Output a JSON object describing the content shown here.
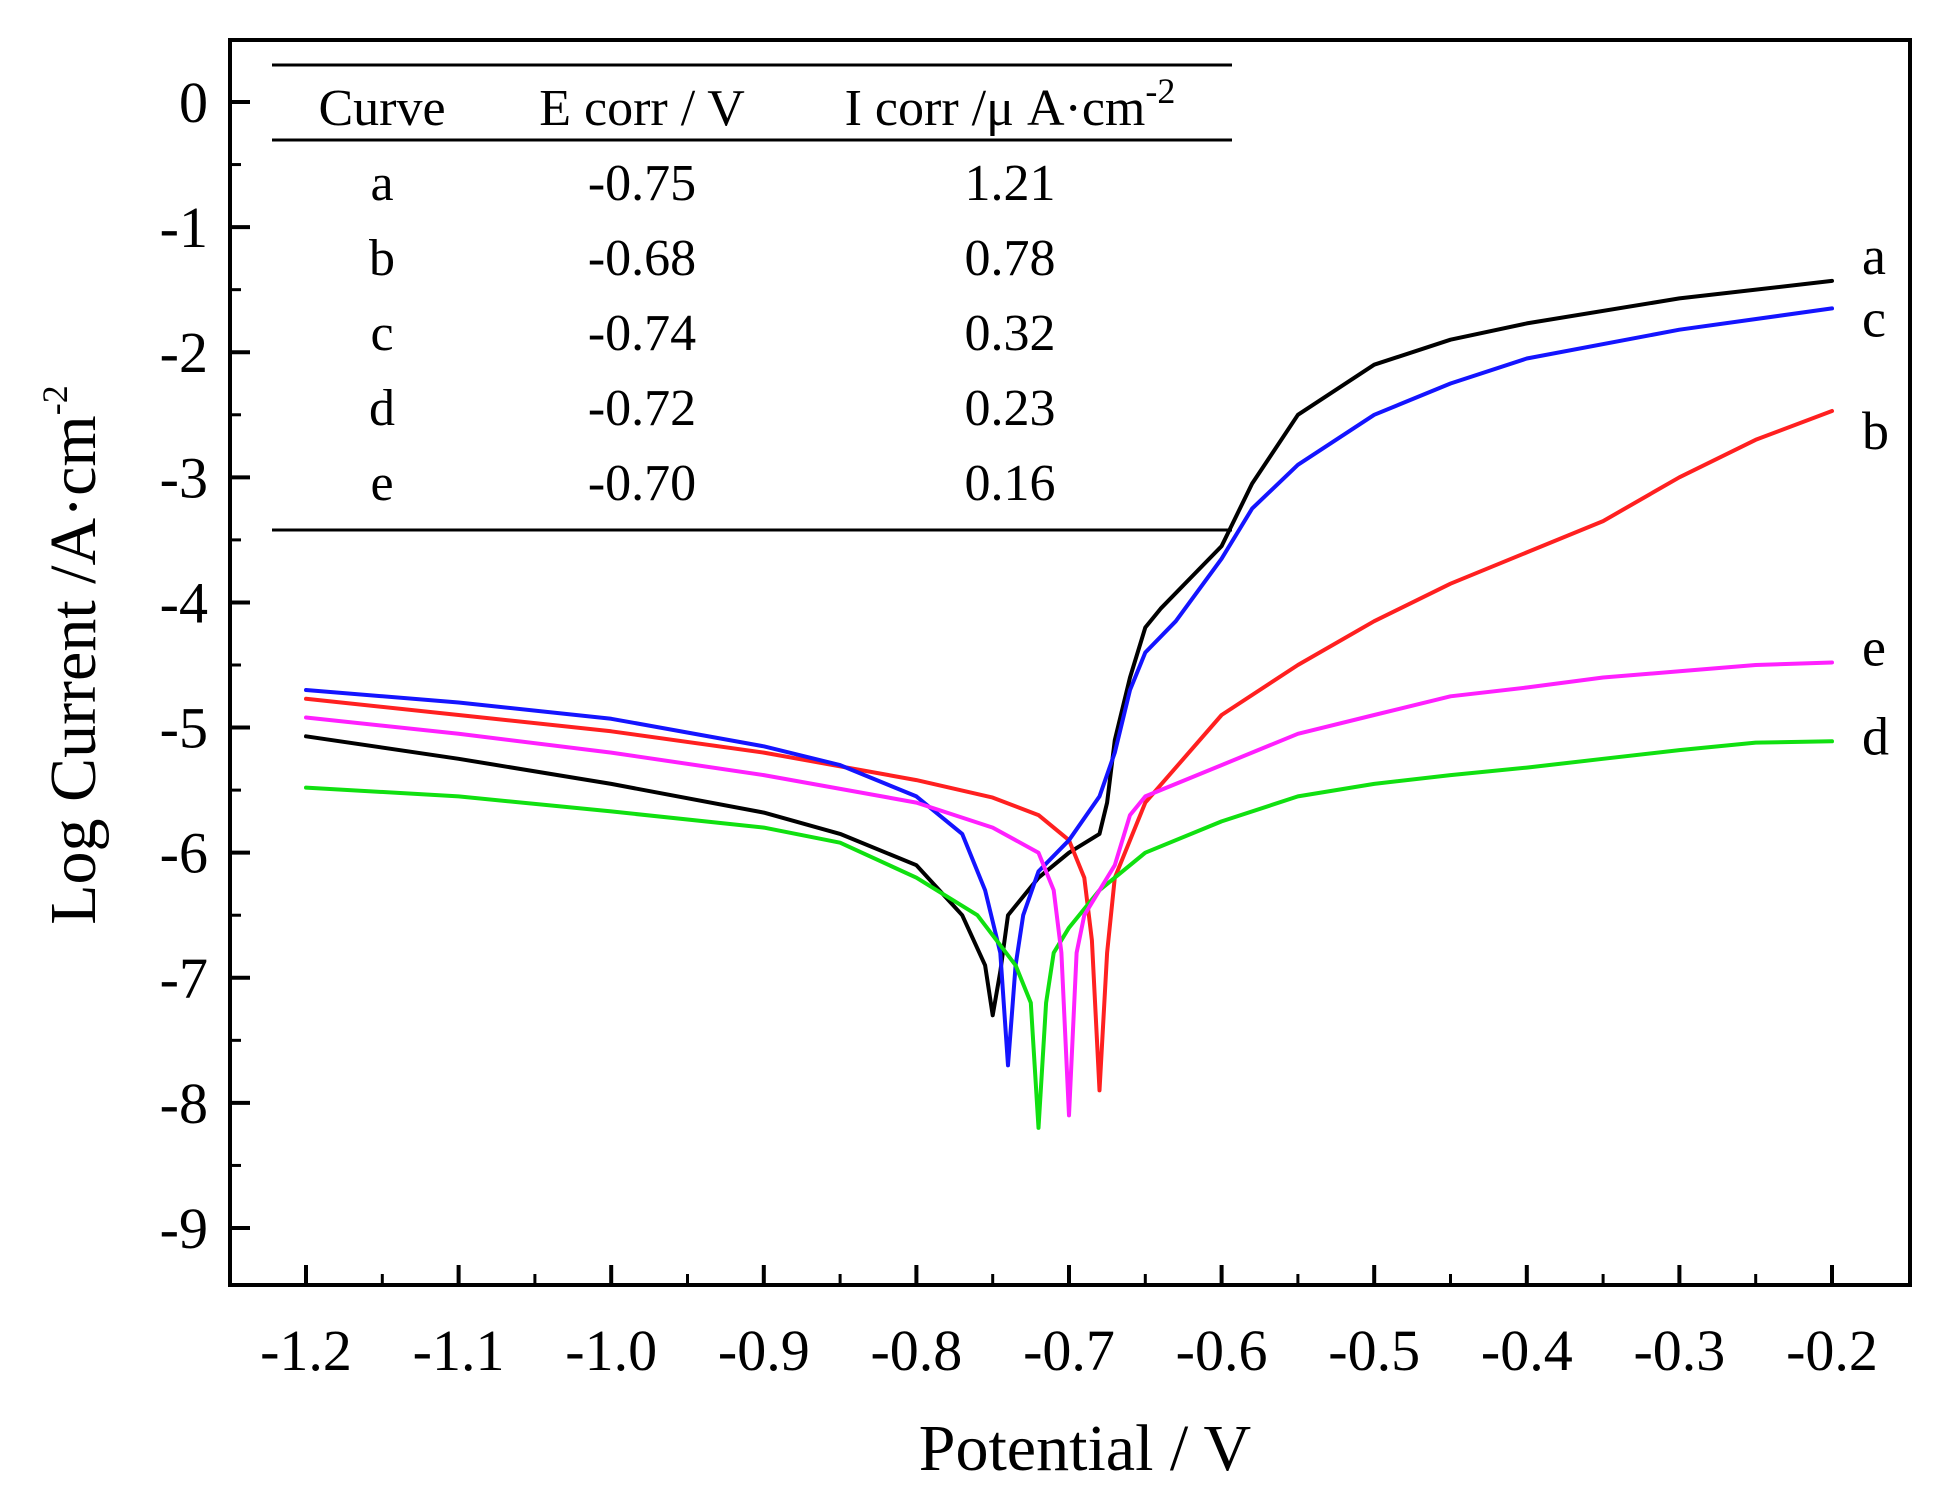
{
  "chart_data": {
    "type": "line",
    "xlabel": "Potential / V",
    "ylabel_main": "Log Current /A·cm",
    "ylabel_sup": "-2",
    "xlim": [
      -1.25,
      -0.15
    ],
    "ylim": [
      -9.5,
      0.5
    ],
    "x_ticks": [
      -1.2,
      -1.1,
      -1.0,
      -0.9,
      -0.8,
      -0.7,
      -0.6,
      -0.5,
      -0.4,
      -0.3,
      -0.2
    ],
    "x_tick_labels": [
      "-1.2",
      "-1.1",
      "-1.0",
      "-0.9",
      "-0.8",
      "-0.7",
      "-0.6",
      "-0.5",
      "-0.4",
      "-0.3",
      "-0.2"
    ],
    "y_ticks": [
      0,
      -1,
      -2,
      -3,
      -4,
      -5,
      -6,
      -7,
      -8,
      -9
    ],
    "y_tick_labels": [
      "0",
      "-1",
      "-2",
      "-3",
      "-4",
      "-5",
      "-6",
      "-7",
      "-8",
      "-9"
    ],
    "inset_table": {
      "headers": [
        "Curve",
        "E corr / V",
        "I corr /μ A·cm"
      ],
      "header_sup": "-2",
      "rows": [
        [
          "a",
          "-0.75",
          "1.21"
        ],
        [
          "b",
          "-0.68",
          "0.78"
        ],
        [
          "c",
          "-0.74",
          "0.32"
        ],
        [
          "d",
          "-0.72",
          "0.23"
        ],
        [
          "e",
          "-0.70",
          "0.16"
        ]
      ]
    },
    "series": [
      {
        "name": "a",
        "color": "#000000",
        "points": [
          [
            -1.2,
            -5.07
          ],
          [
            -1.1,
            -5.25
          ],
          [
            -1.0,
            -5.45
          ],
          [
            -0.9,
            -5.68
          ],
          [
            -0.85,
            -5.85
          ],
          [
            -0.8,
            -6.1
          ],
          [
            -0.77,
            -6.5
          ],
          [
            -0.755,
            -6.9
          ],
          [
            -0.75,
            -7.3
          ],
          [
            -0.745,
            -6.95
          ],
          [
            -0.74,
            -6.5
          ],
          [
            -0.72,
            -6.2
          ],
          [
            -0.7,
            -6.0
          ],
          [
            -0.68,
            -5.85
          ],
          [
            -0.675,
            -5.6
          ],
          [
            -0.67,
            -5.1
          ],
          [
            -0.66,
            -4.6
          ],
          [
            -0.65,
            -4.2
          ],
          [
            -0.64,
            -4.05
          ],
          [
            -0.62,
            -3.8
          ],
          [
            -0.6,
            -3.55
          ],
          [
            -0.58,
            -3.05
          ],
          [
            -0.55,
            -2.5
          ],
          [
            -0.5,
            -2.1
          ],
          [
            -0.45,
            -1.9
          ],
          [
            -0.4,
            -1.77
          ],
          [
            -0.3,
            -1.57
          ],
          [
            -0.2,
            -1.43
          ]
        ]
      },
      {
        "name": "b",
        "color": "#ff2020",
        "points": [
          [
            -1.2,
            -4.77
          ],
          [
            -1.1,
            -4.9
          ],
          [
            -1.0,
            -5.03
          ],
          [
            -0.9,
            -5.2
          ],
          [
            -0.8,
            -5.42
          ],
          [
            -0.75,
            -5.56
          ],
          [
            -0.72,
            -5.7
          ],
          [
            -0.7,
            -5.9
          ],
          [
            -0.69,
            -6.2
          ],
          [
            -0.685,
            -6.7
          ],
          [
            -0.68,
            -7.9
          ],
          [
            -0.675,
            -6.8
          ],
          [
            -0.67,
            -6.2
          ],
          [
            -0.66,
            -5.9
          ],
          [
            -0.65,
            -5.6
          ],
          [
            -0.6,
            -4.9
          ],
          [
            -0.55,
            -4.5
          ],
          [
            -0.5,
            -4.15
          ],
          [
            -0.45,
            -3.85
          ],
          [
            -0.4,
            -3.6
          ],
          [
            -0.35,
            -3.35
          ],
          [
            -0.3,
            -3.0
          ],
          [
            -0.25,
            -2.7
          ],
          [
            -0.2,
            -2.47
          ]
        ]
      },
      {
        "name": "c",
        "color": "#1414ff",
        "points": [
          [
            -1.2,
            -4.7
          ],
          [
            -1.1,
            -4.8
          ],
          [
            -1.0,
            -4.93
          ],
          [
            -0.9,
            -5.15
          ],
          [
            -0.85,
            -5.3
          ],
          [
            -0.8,
            -5.55
          ],
          [
            -0.77,
            -5.85
          ],
          [
            -0.755,
            -6.3
          ],
          [
            -0.745,
            -6.8
          ],
          [
            -0.74,
            -7.7
          ],
          [
            -0.735,
            -6.9
          ],
          [
            -0.73,
            -6.5
          ],
          [
            -0.72,
            -6.15
          ],
          [
            -0.7,
            -5.9
          ],
          [
            -0.68,
            -5.55
          ],
          [
            -0.67,
            -5.2
          ],
          [
            -0.66,
            -4.7
          ],
          [
            -0.65,
            -4.4
          ],
          [
            -0.63,
            -4.15
          ],
          [
            -0.6,
            -3.65
          ],
          [
            -0.58,
            -3.25
          ],
          [
            -0.55,
            -2.9
          ],
          [
            -0.5,
            -2.5
          ],
          [
            -0.45,
            -2.25
          ],
          [
            -0.4,
            -2.05
          ],
          [
            -0.3,
            -1.82
          ],
          [
            -0.2,
            -1.65
          ]
        ]
      },
      {
        "name": "d",
        "color": "#10e010",
        "points": [
          [
            -1.2,
            -5.48
          ],
          [
            -1.1,
            -5.55
          ],
          [
            -1.0,
            -5.67
          ],
          [
            -0.9,
            -5.8
          ],
          [
            -0.85,
            -5.92
          ],
          [
            -0.8,
            -6.2
          ],
          [
            -0.76,
            -6.5
          ],
          [
            -0.735,
            -6.9
          ],
          [
            -0.725,
            -7.2
          ],
          [
            -0.72,
            -8.2
          ],
          [
            -0.715,
            -7.2
          ],
          [
            -0.71,
            -6.8
          ],
          [
            -0.7,
            -6.6
          ],
          [
            -0.68,
            -6.3
          ],
          [
            -0.65,
            -6.0
          ],
          [
            -0.6,
            -5.75
          ],
          [
            -0.55,
            -5.55
          ],
          [
            -0.5,
            -5.45
          ],
          [
            -0.45,
            -5.38
          ],
          [
            -0.4,
            -5.32
          ],
          [
            -0.35,
            -5.25
          ],
          [
            -0.3,
            -5.18
          ],
          [
            -0.25,
            -5.12
          ],
          [
            -0.2,
            -5.11
          ]
        ]
      },
      {
        "name": "e",
        "color": "#ff20ff",
        "points": [
          [
            -1.2,
            -4.92
          ],
          [
            -1.1,
            -5.05
          ],
          [
            -1.0,
            -5.2
          ],
          [
            -0.9,
            -5.38
          ],
          [
            -0.8,
            -5.6
          ],
          [
            -0.75,
            -5.8
          ],
          [
            -0.72,
            -6.0
          ],
          [
            -0.71,
            -6.3
          ],
          [
            -0.705,
            -6.8
          ],
          [
            -0.7,
            -8.1
          ],
          [
            -0.695,
            -6.8
          ],
          [
            -0.69,
            -6.5
          ],
          [
            -0.67,
            -6.1
          ],
          [
            -0.66,
            -5.7
          ],
          [
            -0.65,
            -5.55
          ],
          [
            -0.6,
            -5.3
          ],
          [
            -0.55,
            -5.05
          ],
          [
            -0.5,
            -4.9
          ],
          [
            -0.45,
            -4.75
          ],
          [
            -0.4,
            -4.68
          ],
          [
            -0.35,
            -4.6
          ],
          [
            -0.3,
            -4.55
          ],
          [
            -0.25,
            -4.5
          ],
          [
            -0.2,
            -4.48
          ]
        ]
      }
    ]
  }
}
